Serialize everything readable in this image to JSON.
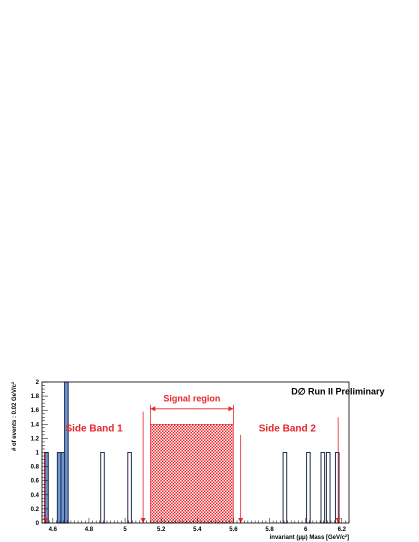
{
  "chart_data": {
    "type": "bar",
    "title": "",
    "xlabel": "invariant (μμ) Mass [GeV/c²]",
    "ylabel": "# of events : 0.02 GeV/c²",
    "xlim": [
      4.54,
      6.24
    ],
    "ylim": [
      0,
      2
    ],
    "xticks": [
      "4.6",
      "4.8",
      "5",
      "5.2",
      "5.4",
      "5.6",
      "5.8",
      "6",
      "6.2"
    ],
    "yticks": [
      "0",
      "0.2",
      "0.4",
      "0.6",
      "0.8",
      "1",
      "1.2",
      "1.4",
      "1.6",
      "1.8",
      "2"
    ],
    "bin_width": 0.02,
    "sideband1_bins": [
      {
        "x": 4.565,
        "value": 1
      },
      {
        "x": 4.635,
        "value": 1
      },
      {
        "x": 4.655,
        "value": 1
      },
      {
        "x": 4.675,
        "value": 2
      }
    ],
    "sideband1_outline_bins": [
      {
        "x": 4.565,
        "value": 1
      },
      {
        "x": 4.635,
        "value": 1
      },
      {
        "x": 4.655,
        "value": 1
      },
      {
        "x": 4.675,
        "value": 2
      },
      {
        "x": 4.875,
        "value": 1
      },
      {
        "x": 5.025,
        "value": 1
      }
    ],
    "sideband2_outline_bins": [
      {
        "x": 5.885,
        "value": 1
      },
      {
        "x": 6.015,
        "value": 1
      },
      {
        "x": 6.095,
        "value": 1
      },
      {
        "x": 6.125,
        "value": 1
      },
      {
        "x": 6.175,
        "value": 1
      }
    ],
    "signal_region": {
      "from": 5.14,
      "to": 5.6,
      "value": 1.4
    },
    "arrows": {
      "sideband1": {
        "from": 4.56,
        "to": 5.1
      },
      "signal": {
        "from": 5.14,
        "to": 5.6
      },
      "sideband2": {
        "from": 5.64,
        "to": 6.18
      }
    },
    "annotations": {
      "sideband1": "Side Band 1",
      "signal": "Signal region",
      "sideband2": "Side Band 2",
      "experiment": "D∅   Run II Preliminary"
    },
    "colors": {
      "sideband_fill": "#6f94cf",
      "signal_fill": "#e8262b",
      "annotation": "#e8262b",
      "outline": "#22314f"
    },
    "grid": false,
    "legend": "none"
  }
}
